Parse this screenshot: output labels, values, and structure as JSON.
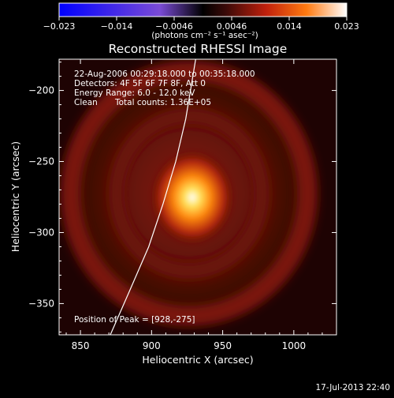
{
  "colorbar": {
    "min_label": "−0.023",
    "tick_labels": [
      "−0.023",
      "−0.014",
      "−0.0046",
      "0.0046",
      "0.014",
      "0.023"
    ],
    "unit_label": "(photons cm⁻² s⁻¹ asec⁻²)",
    "colors": {
      "neg_end": "#0000ff",
      "neg_mid": "#7a4bd6",
      "zero": "#000000",
      "low": "#3a0a08",
      "mid": "#c0200c",
      "high": "#ff7a10",
      "top": "#ffffff"
    }
  },
  "chart_data": {
    "type": "heatmap",
    "title": "Reconstructed RHESSI Image",
    "xlabel": "Heliocentric X (arcsec)",
    "ylabel": "Heliocentric Y (arcsec)",
    "xlim": [
      835,
      1030
    ],
    "ylim": [
      -372,
      -178
    ],
    "xticks": [
      850,
      900,
      950,
      1000
    ],
    "yticks": [
      -200,
      -250,
      -300,
      -350
    ],
    "xtick_labels": [
      "850",
      "900",
      "950",
      "1000"
    ],
    "ytick_labels": [
      "−200",
      "−250",
      "−300",
      "−350"
    ],
    "peak": {
      "x": 928,
      "y": -275,
      "value": 0.023
    },
    "colorbar_range": [
      -0.023,
      0.023
    ],
    "annotations": [
      "22-Aug-2006 00:29:18.000 to 00:35:18.000",
      "Detectors: 4F 5F 6F 7F 8F, Att 0",
      "Energy Range: 6.0 - 12.0 keV",
      "Clean",
      "Total counts: 1.36E+05",
      "Position of Peak = [928,-275]"
    ],
    "limb_curve": [
      [
        871,
        -372
      ],
      [
        885,
        -340
      ],
      [
        898,
        -310
      ],
      [
        908,
        -280
      ],
      [
        917,
        -250
      ],
      [
        924,
        -220
      ],
      [
        929,
        -190
      ],
      [
        931,
        -178
      ]
    ]
  },
  "footer": {
    "timestamp": "17-Jul-2013 22:40"
  }
}
